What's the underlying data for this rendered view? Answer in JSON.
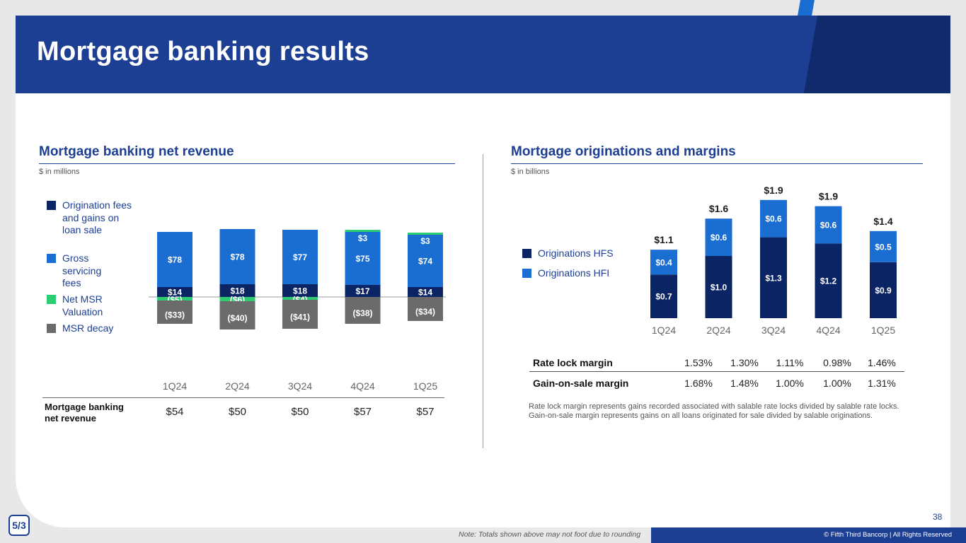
{
  "title": "Mortgage banking results",
  "left": {
    "heading": "Mortgage banking net revenue",
    "unit": "$ in millions",
    "legend": [
      {
        "label": "Origination fees and gains on loan sale",
        "color": "#0b2463"
      },
      {
        "label": "Gross servicing fees",
        "color": "#1b6ed1"
      },
      {
        "label": "Net MSR Valuation",
        "color": "#2ecc71"
      },
      {
        "label": "MSR decay",
        "color": "#6b6b6b"
      }
    ],
    "table_label": "Mortgage banking net revenue",
    "net_revenue": [
      "$54",
      "$50",
      "$50",
      "$57",
      "$57"
    ]
  },
  "right": {
    "heading": "Mortgage originations and margins",
    "unit": "$ in billions",
    "legend": [
      {
        "label": "Originations HFS",
        "color": "#0b2463"
      },
      {
        "label": "Originations HFI",
        "color": "#1b6ed1"
      }
    ],
    "margins": [
      {
        "label": "Rate lock margin",
        "values": [
          "1.53%",
          "1.30%",
          "1.11%",
          "0.98%",
          "1.46%"
        ]
      },
      {
        "label": "Gain-on-sale margin",
        "values": [
          "1.68%",
          "1.48%",
          "1.00%",
          "1.00%",
          "1.31%"
        ]
      }
    ],
    "note_1": "Rate lock margin represents gains recorded associated with salable rate locks divided by salable rate locks.",
    "note_2": "Gain-on-sale margin represents gains on all loans originated for sale divided by salable originations."
  },
  "chart_data": [
    {
      "type": "bar",
      "stacked": true,
      "title": "Mortgage banking net revenue",
      "ylabel": "$ in millions",
      "categories": [
        "1Q24",
        "2Q24",
        "3Q24",
        "4Q24",
        "1Q25"
      ],
      "series": [
        {
          "name": "Origination fees and gains on loan sale",
          "values": [
            14,
            18,
            18,
            17,
            14
          ],
          "labels": [
            "$14",
            "$18",
            "$18",
            "$17",
            "$14"
          ]
        },
        {
          "name": "Gross servicing fees",
          "values": [
            78,
            78,
            77,
            75,
            74
          ],
          "labels": [
            "$78",
            "$78",
            "$77",
            "$75",
            "$74"
          ]
        },
        {
          "name": "Net MSR Valuation",
          "values": [
            -5,
            -6,
            -4,
            3,
            3
          ],
          "labels": [
            "($5)",
            "($6)",
            "($4)",
            "$3",
            "$3"
          ]
        },
        {
          "name": "MSR decay",
          "values": [
            -33,
            -40,
            -41,
            -38,
            -34
          ],
          "labels": [
            "($33)",
            "($40)",
            "($41)",
            "($38)",
            "($34)"
          ]
        }
      ]
    },
    {
      "type": "bar",
      "stacked": true,
      "title": "Mortgage originations and margins",
      "ylabel": "$ in billions",
      "categories": [
        "1Q24",
        "2Q24",
        "3Q24",
        "4Q24",
        "1Q25"
      ],
      "series": [
        {
          "name": "Originations HFS",
          "values": [
            0.7,
            1.0,
            1.3,
            1.2,
            0.9
          ],
          "labels": [
            "$0.7",
            "$1.0",
            "$1.3",
            "$1.2",
            "$0.9"
          ]
        },
        {
          "name": "Originations HFI",
          "values": [
            0.4,
            0.6,
            0.6,
            0.6,
            0.5
          ],
          "labels": [
            "$0.4",
            "$0.6",
            "$0.6",
            "$0.6",
            "$0.5"
          ]
        }
      ],
      "totals": [
        "$1.1",
        "$1.6",
        "$1.9",
        "$1.9",
        "$1.4"
      ]
    }
  ],
  "footer": {
    "note": "Note: Totals shown above may not foot due to rounding",
    "copyright": "© Fifth Third Bancorp | All Rights Reserved",
    "page": "38",
    "logo": "5/3"
  }
}
